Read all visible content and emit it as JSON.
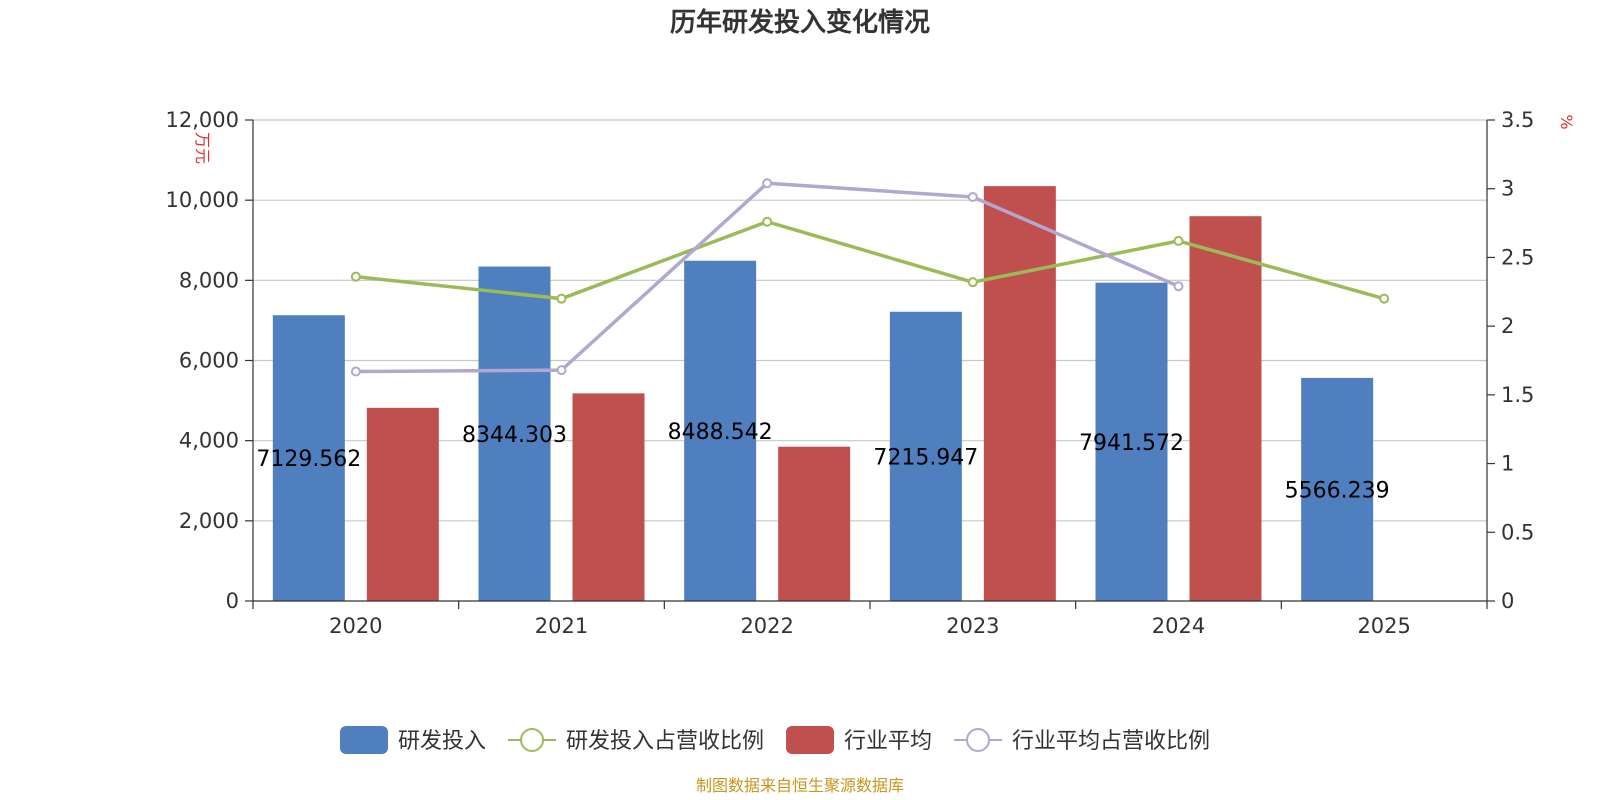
{
  "chart_data": {
    "type": "bar",
    "title": "历年研发投入变化情况",
    "categories": [
      "2020",
      "2021",
      "2022",
      "2023",
      "2024",
      "2025"
    ],
    "series": [
      {
        "name": "研发投入",
        "type": "bar",
        "axis": "left",
        "color": "#4f7fbf",
        "values": [
          7129.562,
          8344.303,
          8488.542,
          7215.947,
          7941.572,
          5566.239
        ],
        "labels": [
          "7129.562",
          "8344.303",
          "8488.542",
          "7215.947",
          "7941.572",
          "5566.239"
        ]
      },
      {
        "name": "研发投入占营收比例",
        "type": "line",
        "axis": "right",
        "color": "#9bbb59",
        "values": [
          2.36,
          2.2,
          2.76,
          2.32,
          2.62,
          2.2
        ]
      },
      {
        "name": "行业平均",
        "type": "bar",
        "axis": "left",
        "color": "#c0504d",
        "values": [
          4820,
          5180,
          3850,
          10350,
          9600,
          null
        ]
      },
      {
        "name": "行业平均占营收比例",
        "type": "line",
        "axis": "right",
        "color": "#b3a6cf",
        "values": [
          1.67,
          1.68,
          3.04,
          2.94,
          2.29,
          null
        ]
      }
    ],
    "y_left": {
      "unit": "万元",
      "min": 0,
      "max": 12000,
      "ticks": [
        0,
        2000,
        4000,
        6000,
        8000,
        10000,
        12000
      ],
      "tick_labels": [
        "0",
        "2,000",
        "4,000",
        "6,000",
        "8,000",
        "10,000",
        "12,000"
      ]
    },
    "y_right": {
      "unit": "%",
      "min": 0,
      "max": 3.5,
      "ticks": [
        0,
        0.5,
        1,
        1.5,
        2,
        2.5,
        3,
        3.5
      ],
      "tick_labels": [
        "0",
        "0.5",
        "1",
        "1.5",
        "2",
        "2.5",
        "3",
        "3.5"
      ]
    },
    "grid": true,
    "legend_position": "bottom-center",
    "source": "制图数据来自恒生聚源数据库"
  }
}
